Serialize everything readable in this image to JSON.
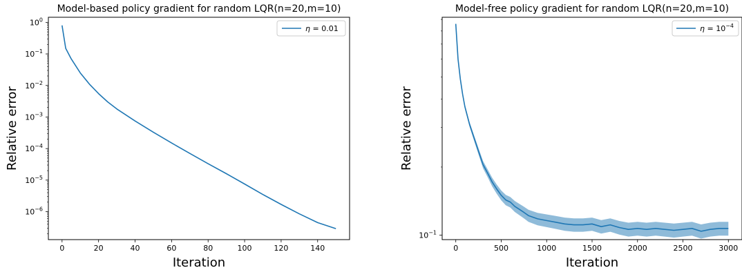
{
  "chart_data": [
    {
      "type": "line",
      "title": "Model-based policy gradient for random LQR(n=20,m=10)",
      "xlabel": "Iteration",
      "ylabel": "Relative error",
      "yscale": "log",
      "xlim": [
        -7.5,
        157.5
      ],
      "ylim": [
        1.3e-07,
        1.45
      ],
      "xticks": [
        0,
        20,
        40,
        60,
        80,
        100,
        120,
        140
      ],
      "xtick_labels": [
        "0",
        "20",
        "40",
        "60",
        "80",
        "100",
        "120",
        "140"
      ],
      "ytick_labels": [
        {
          "base": "10",
          "exp": "0",
          "value": 1
        },
        {
          "base": "10",
          "exp": "-1",
          "value": 0.1
        },
        {
          "base": "10",
          "exp": "-2",
          "value": 0.01
        },
        {
          "base": "10",
          "exp": "-3",
          "value": 0.001
        },
        {
          "base": "10",
          "exp": "-4",
          "value": 0.0001
        },
        {
          "base": "10",
          "exp": "-5",
          "value": 1e-05
        },
        {
          "base": "10",
          "exp": "-6",
          "value": 1e-06
        }
      ],
      "legend_position": "top-right",
      "color": "#1f77b4",
      "series": [
        {
          "name": "η = 0.01",
          "legend_symbol": "η",
          "legend_rest": " = 0.01",
          "x": [
            0,
            2,
            5,
            10,
            15,
            20,
            25,
            30,
            40,
            50,
            60,
            70,
            80,
            90,
            100,
            110,
            120,
            130,
            140,
            150
          ],
          "y": [
            0.8,
            0.15,
            0.07,
            0.025,
            0.011,
            0.0055,
            0.003,
            0.0018,
            0.00075,
            0.00033,
            0.00015,
            7e-05,
            3.3e-05,
            1.6e-05,
            7.5e-06,
            3.5e-06,
            1.7e-06,
            8.5e-07,
            4.5e-07,
            2.9e-07
          ]
        }
      ]
    },
    {
      "type": "line",
      "title": "Model-free policy gradient for random LQR(n=20,m=10)",
      "xlabel": "Iteration",
      "ylabel": "Relative error",
      "yscale": "log",
      "xlim": [
        -150,
        3150
      ],
      "ylim": [
        0.0955,
        0.92
      ],
      "xticks": [
        0,
        500,
        1000,
        1500,
        2000,
        2500,
        3000
      ],
      "xtick_labels": [
        "0",
        "500",
        "1000",
        "1500",
        "2000",
        "2500",
        "3000"
      ],
      "ytick_labels": [
        {
          "base": "10",
          "exp": "-1",
          "value": 0.1
        }
      ],
      "legend_position": "top-right",
      "color": "#1f77b4",
      "band_color": "#1f77b4",
      "series": [
        {
          "name": "η = 10^-4",
          "legend_symbol": "η",
          "legend_rest": " = 10",
          "legend_exp": "−4",
          "x": [
            0,
            25,
            50,
            75,
            100,
            150,
            200,
            250,
            300,
            350,
            400,
            450,
            500,
            550,
            600,
            650,
            700,
            750,
            800,
            900,
            1000,
            1100,
            1200,
            1300,
            1400,
            1500,
            1600,
            1700,
            1800,
            1900,
            2000,
            2100,
            2200,
            2300,
            2400,
            2500,
            2600,
            2700,
            2800,
            2900,
            3000
          ],
          "y": [
            0.86,
            0.6,
            0.49,
            0.42,
            0.37,
            0.31,
            0.27,
            0.235,
            0.205,
            0.188,
            0.172,
            0.16,
            0.15,
            0.143,
            0.14,
            0.134,
            0.13,
            0.126,
            0.122,
            0.118,
            0.116,
            0.114,
            0.112,
            0.111,
            0.111,
            0.112,
            0.109,
            0.111,
            0.108,
            0.106,
            0.107,
            0.106,
            0.107,
            0.106,
            0.105,
            0.106,
            0.107,
            0.104,
            0.106,
            0.107,
            0.107
          ],
          "band_halfwidth": 0.0075
        }
      ]
    }
  ]
}
